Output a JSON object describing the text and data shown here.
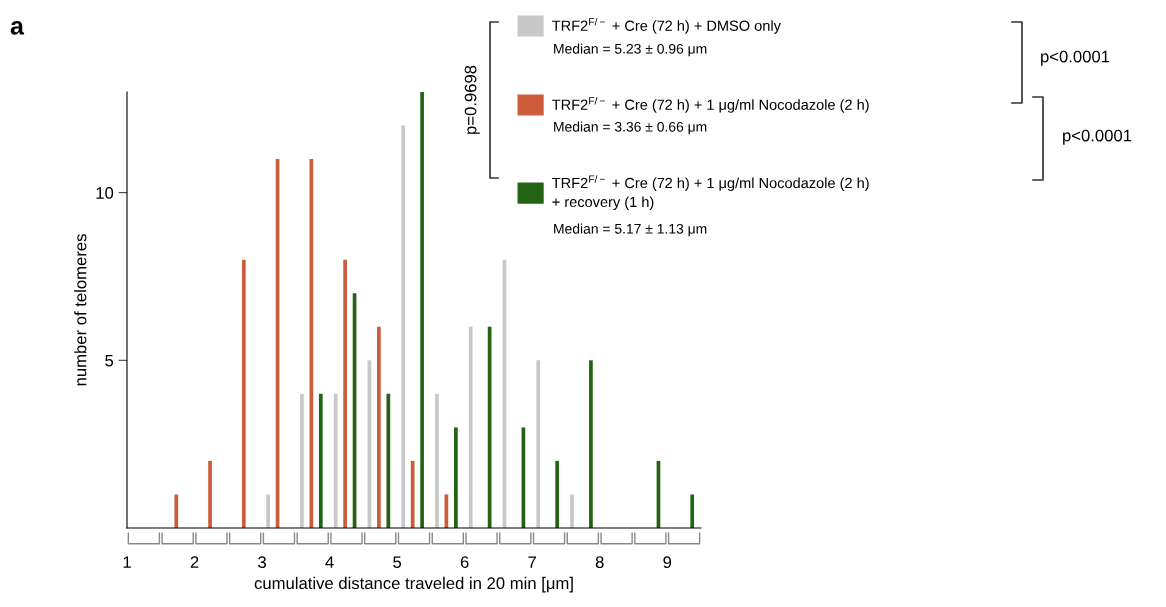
{
  "chart_data": {
    "type": "histogram",
    "bins": [
      1,
      1.5,
      2,
      2.5,
      3,
      3.5,
      4,
      4.5,
      5,
      5.5,
      6,
      6.5,
      7,
      7.5,
      8,
      8.5,
      9,
      9.5
    ],
    "series": [
      {
        "name": "TRF2$^{F/−}$ + Cre (72 h) + DMSO only",
        "color": "#c8c8c8",
        "values": [
          0,
          0,
          0,
          0,
          1,
          4,
          4,
          5,
          12,
          4,
          6,
          8,
          5,
          1,
          0,
          0,
          0
        ]
      },
      {
        "name": "TRF2$^{F/−}$ + Cre (72 h) + 1 μg/ml Nocodazole (2 h)",
        "color": "#cd5c3c",
        "values": [
          0,
          1,
          2,
          8,
          11,
          11,
          8,
          6,
          2,
          1,
          0,
          0,
          0,
          0,
          0,
          0,
          0
        ]
      },
      {
        "name": "TRF2$^{F/−}$ + Cre (72 h) + 1 μg/ml Nocodazole (2 h)\n+ recovery (1 h)",
        "color": "#236414",
        "values": [
          0,
          0,
          0,
          0,
          0,
          4,
          7,
          4,
          13,
          3,
          6,
          3,
          2,
          5,
          0,
          2,
          1
        ]
      }
    ],
    "xlabel": "cumulative distance traveled in 20 min [μm]",
    "ylabel": "number of telomeres",
    "xlim": [
      1,
      9.5
    ],
    "xticks": [
      1,
      2,
      3,
      4,
      5,
      6,
      7,
      8,
      9
    ],
    "ylim": [
      0,
      13
    ],
    "yticks": [
      5,
      10
    ],
    "grid": false,
    "legend": "top right",
    "annotations": [
      "a",
      "Median = 5.23 ± 0.96 μm",
      "Median = 3.36 ± 0.66 μm",
      "Median = 5.17 ± 1.13 μm",
      "p=0.9698",
      "p<0.0001",
      "p<0.0001"
    ]
  }
}
